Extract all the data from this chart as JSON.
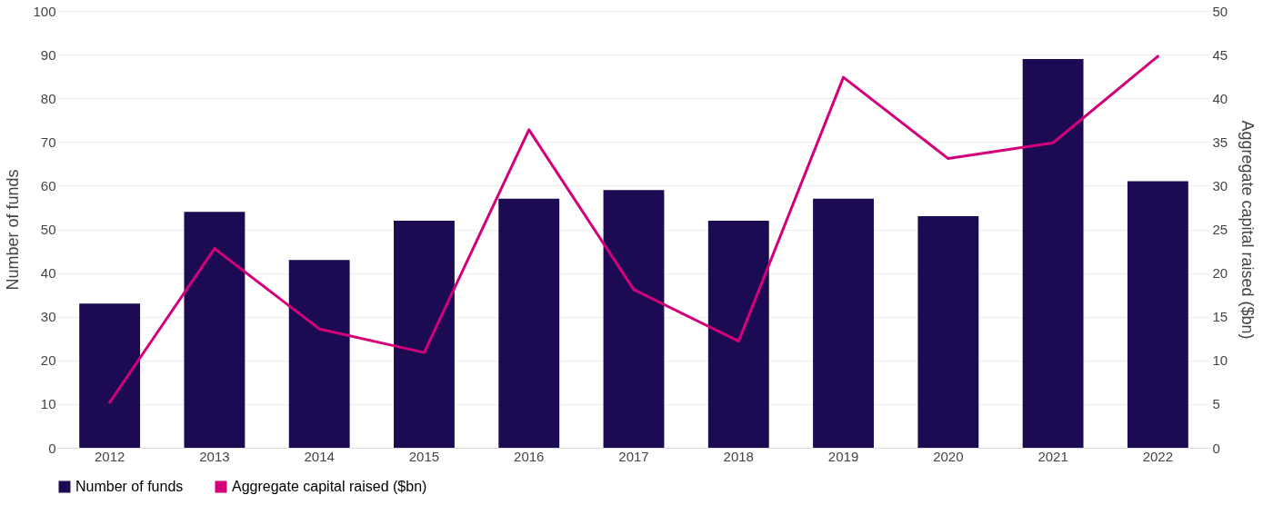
{
  "chart_data": {
    "type": "bar",
    "categories": [
      "2012",
      "2013",
      "2014",
      "2015",
      "2016",
      "2017",
      "2018",
      "2019",
      "2020",
      "2021",
      "2022"
    ],
    "series": [
      {
        "name": "Number of funds",
        "color": "#1c0a52",
        "values": [
          33,
          54,
          43,
          52,
          57,
          59,
          52,
          57,
          53,
          89,
          61
        ]
      },
      {
        "name": "Aggregate capital raised ($bn)",
        "type": "line",
        "axis": "y2",
        "color": "#d4007a",
        "values": [
          5.2,
          22.8,
          13.6,
          10.9,
          36.4,
          18.1,
          12.2,
          42.4,
          33.1,
          34.9,
          44.8
        ]
      }
    ],
    "ylabel": "Number of funds",
    "y2label": "Aggregate capital raised ($bn)",
    "ylim": [
      0,
      100
    ],
    "yticks": [
      0,
      10,
      20,
      30,
      40,
      50,
      60,
      70,
      80,
      90,
      100
    ],
    "y2lim": [
      0,
      50
    ],
    "y2ticks": [
      0,
      5,
      10,
      15,
      20,
      25,
      30,
      35,
      40,
      45,
      50
    ],
    "grid": "y",
    "legend": "bottom"
  }
}
